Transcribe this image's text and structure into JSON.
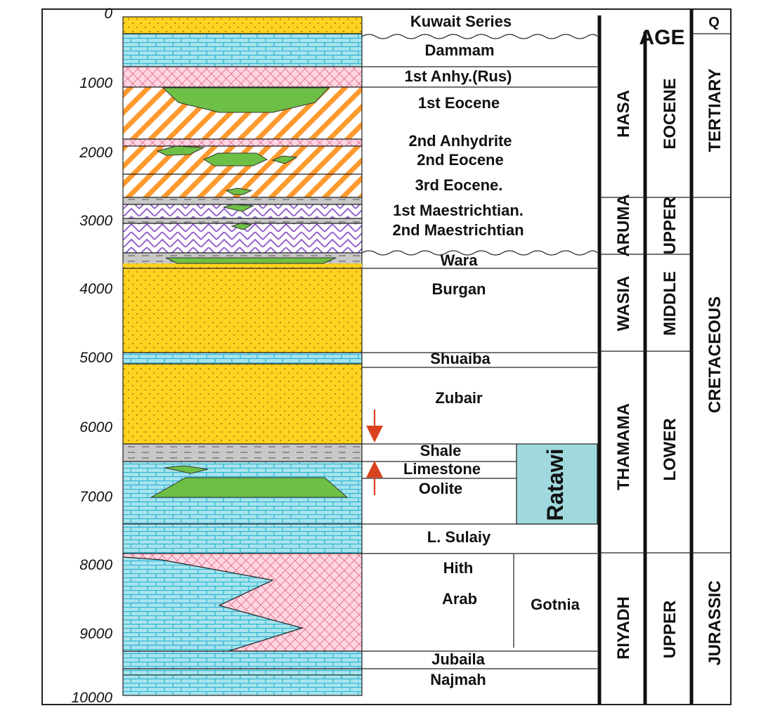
{
  "depth_ticks": [
    "0",
    "1000",
    "2000",
    "3000",
    "4000",
    "5000",
    "6000",
    "7000",
    "8000",
    "9000",
    "10000"
  ],
  "formations": {
    "kuwait_series": "Kuwait Series",
    "dammam": "Dammam",
    "first_anhy": "1st Anhy.(Rus)",
    "first_eocene": "1st Eocene",
    "second_anhydrite": "2nd Anhydrite",
    "second_eocene": "2nd Eocene",
    "third_eocene": "3rd Eocene.",
    "first_maestrichtian": "1st Maestrichtian.",
    "second_maestrichtian": "2nd Maestrichtian",
    "wara": "Wara",
    "burgan": "Burgan",
    "shuaiba": "Shuaiba",
    "zubair": "Zubair",
    "shale": "Shale",
    "limestone": "Limestone",
    "oolite": "Oolite",
    "l_sulaiy": "L. Sulaiy",
    "hith": "Hith",
    "arab": "Arab",
    "jubaila": "Jubaila",
    "najmah": "Najmah"
  },
  "groupings": {
    "ratawi": "Ratawi",
    "gotnia": "Gotnia"
  },
  "groups": {
    "hasa": "HASA",
    "aruma": "ARUMA",
    "wasia": "WASIA",
    "thamama": "THAMAMA",
    "riyadh": "RIYADH"
  },
  "epochs": {
    "eocene": "EOCENE",
    "upper1": "UPPER",
    "middle": "MIDDLE",
    "lower": "LOWER",
    "upper2": "UPPER"
  },
  "periods": {
    "q": "Q",
    "tertiary": "TERTIARY",
    "cretaceous": "CRETACEOUS",
    "jurassic": "JURASSIC"
  },
  "age_header": "AGE",
  "colors": {
    "sandstone": "#FFD21F",
    "limestone_fill": "#A9E4EC",
    "limestone_brick": "#2FB5D6",
    "anhydrite": "#FFD5E2",
    "anhydrite_line": "#E0708C",
    "orange_hatch": "#FF9A2E",
    "purple_hatch": "#8A55C8",
    "shale": "#C8C8C8",
    "reservoir": "#6EBF45",
    "arrow": "#D9421E",
    "ratawi_box": "#9FD9DE"
  }
}
